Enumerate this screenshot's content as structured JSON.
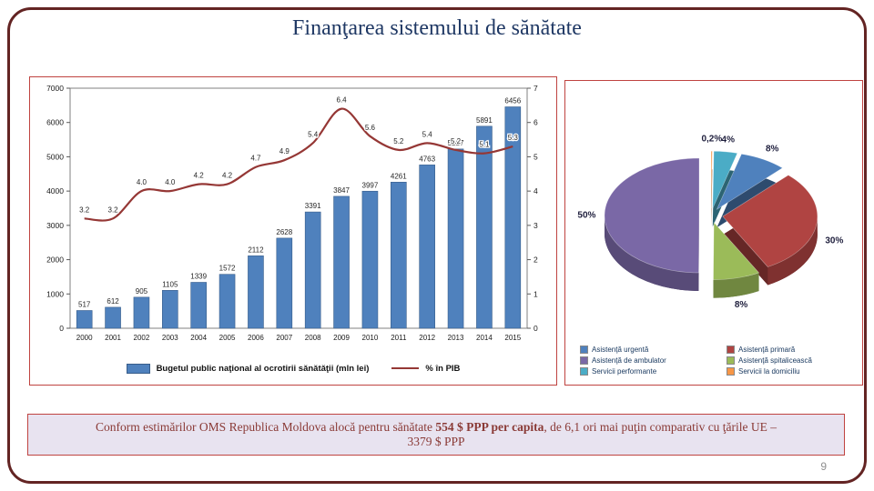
{
  "slide": {
    "title": "Finanţarea sistemului de sănătate",
    "page_number": "9"
  },
  "colors": {
    "slide_border": "#632423",
    "panel_border": "#bf4340",
    "title_text": "#1f3864",
    "footer_bg": "#e8e3f0",
    "footer_text": "#8a3a36",
    "bar_fill": "#4f81bd",
    "line_stroke": "#953735"
  },
  "footer": {
    "prefix": "Conform estimărilor OMS Republica Moldova alocă pentru sănătate ",
    "bold": "554 $ PPP per capita",
    "suffix": ", de 6,1 ori mai puţin comparativ cu ţările UE –",
    "line2": "3379 $ PPP"
  },
  "chart_data": [
    {
      "type": "bar",
      "title": "",
      "categories": [
        "2000",
        "2001",
        "2002",
        "2003",
        "2004",
        "2005",
        "2006",
        "2007",
        "2008",
        "2009",
        "2010",
        "2011",
        "2012",
        "2013",
        "2014",
        "2015"
      ],
      "series": [
        {
          "name": "Bugetul public naţional al ocrotirii sănătăţii (mln lei)",
          "type": "bar",
          "axis": "left",
          "color": "#4f81bd",
          "values": [
            517,
            612,
            905,
            1105,
            1339,
            1572,
            2112,
            2628,
            3391,
            3847,
            3997,
            4261,
            4763,
            5227,
            5891,
            6456
          ]
        },
        {
          "name": "% în PIB",
          "type": "line",
          "axis": "right",
          "color": "#953735",
          "values": [
            3.2,
            3.2,
            4.0,
            4.0,
            4.2,
            4.2,
            4.7,
            4.9,
            5.4,
            6.4,
            5.6,
            5.2,
            5.4,
            5.2,
            5.1,
            5.3
          ]
        }
      ],
      "left_axis": {
        "min": 0,
        "max": 7000,
        "step": 1000
      },
      "right_axis": {
        "min": 0,
        "max": 7,
        "step": 1
      },
      "grid": false,
      "legend_position": "bottom"
    },
    {
      "type": "pie",
      "effect": "3d-exploded",
      "slices": [
        {
          "label": "Servicii la domiciliu",
          "pct_label": "0,2%",
          "value": 0.2,
          "color": "#f79646"
        },
        {
          "label": "Servicii performante",
          "pct_label": "4%",
          "value": 4,
          "color": "#4bacc6"
        },
        {
          "label": "Asistenţă urgentă",
          "pct_label": "8%",
          "value": 8,
          "color": "#4f81bd"
        },
        {
          "label": "Asistenţă primară",
          "pct_label": "30%",
          "value": 30,
          "color": "#b04442"
        },
        {
          "label": "Asistenţă spitalicească",
          "pct_label": "8%",
          "value": 8,
          "color": "#9bbb59"
        },
        {
          "label": "Asistenţă de ambulator",
          "pct_label": "50%",
          "value": 50,
          "color": "#7a68a6"
        }
      ],
      "legend_position": "bottom",
      "legend_columns": [
        [
          "Asistenţă urgentă",
          "Asistenţă de ambulator",
          "Servicii performante"
        ],
        [
          "Asistenţă primară",
          "Asistenţă spitalicească",
          "Servicii la domiciliu"
        ]
      ]
    }
  ]
}
